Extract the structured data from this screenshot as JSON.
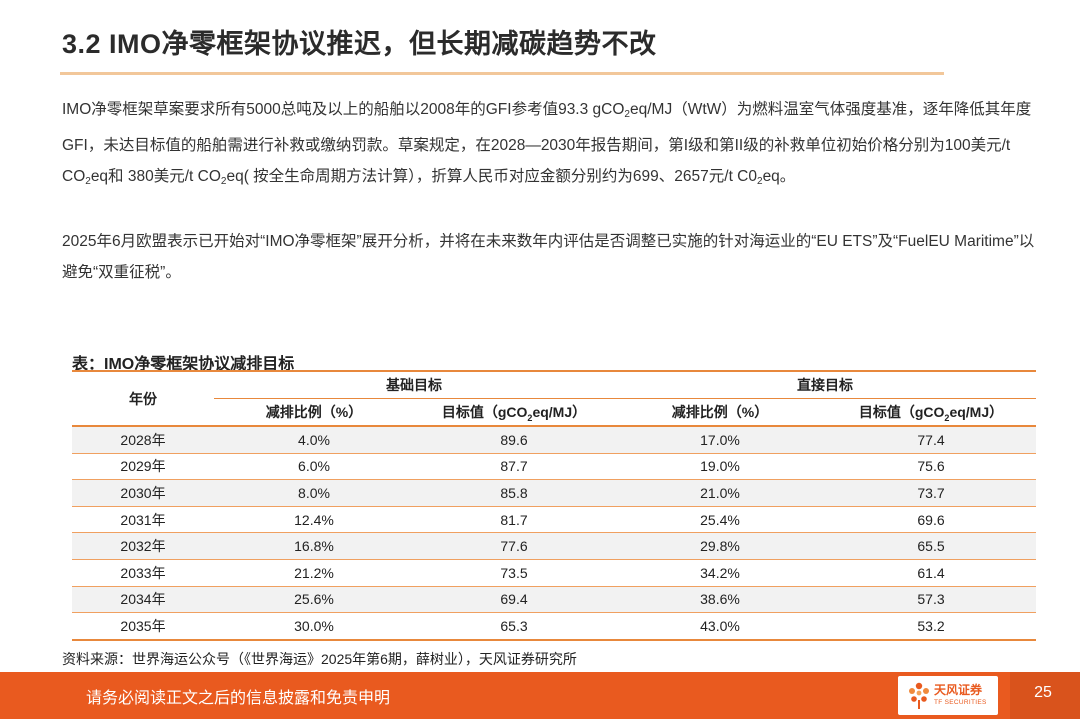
{
  "title": "3.2 IMO净零框架协议推迟，但长期减碳趋势不改",
  "paragraph1": {
    "s1": "IMO净零框架草案要求所有5000总吨及以上的船舶以2008年的GFI参考值93.3  gCO",
    "sub1": "2",
    "s2": "eq/MJ（WtW）为燃料温室气体强度基准，逐年降低其年度GFI，未达目标值的船舶需进行补救或缴纳罚款。草案规定，在2028—2030年报告期间，第I级和第II级的补救单位初始价格分别为100美元/t CO",
    "sub2": "2",
    "s3": "eq和 380美元/t CO",
    "sub3": "2",
    "s4": "eq( 按全生命周期方法计算），折算人民币对应金额分别约为699、2657元/t C0",
    "sub4": "2",
    "s5": "eq。"
  },
  "paragraph2": "2025年6月欧盟表示已开始对“IMO净零框架”展开分析，并将在未来数年内评估是否调整已实施的针对海运业的“EU ETS”及“FuelEU Maritime”以避免“双重征税”。",
  "table": {
    "caption": "表：IMO净零框架协议减排目标",
    "year_header": "年份",
    "group1": "基础目标",
    "group2": "直接目标",
    "col_reduction": "减排比例（%）",
    "col_target_prefix": "目标值（gCO",
    "col_target_sub": "2",
    "col_target_suffix": "eq/MJ）",
    "rows": [
      {
        "year": "2028年",
        "base_pct": "4.0%",
        "base_val": "89.6",
        "direct_pct": "17.0%",
        "direct_val": "77.4"
      },
      {
        "year": "2029年",
        "base_pct": "6.0%",
        "base_val": "87.7",
        "direct_pct": "19.0%",
        "direct_val": "75.6"
      },
      {
        "year": "2030年",
        "base_pct": "8.0%",
        "base_val": "85.8",
        "direct_pct": "21.0%",
        "direct_val": "73.7"
      },
      {
        "year": "2031年",
        "base_pct": "12.4%",
        "base_val": "81.7",
        "direct_pct": "25.4%",
        "direct_val": "69.6"
      },
      {
        "year": "2032年",
        "base_pct": "16.8%",
        "base_val": "77.6",
        "direct_pct": "29.8%",
        "direct_val": "65.5"
      },
      {
        "year": "2033年",
        "base_pct": "21.2%",
        "base_val": "73.5",
        "direct_pct": "34.2%",
        "direct_val": "61.4"
      },
      {
        "year": "2034年",
        "base_pct": "25.6%",
        "base_val": "69.4",
        "direct_pct": "38.6%",
        "direct_val": "57.3"
      },
      {
        "year": "2035年",
        "base_pct": "30.0%",
        "base_val": "65.3",
        "direct_pct": "43.0%",
        "direct_val": "53.2"
      }
    ]
  },
  "source": "资料来源：世界海运公众号（《世界海运》2025年第6期，薛树业），天风证券研究所",
  "footer": {
    "disclaimer": "请务必阅读正文之后的信息披露和免责申明",
    "logo_name": "天风证券",
    "logo_sub": "TF SECURITIES",
    "page_number": "25"
  },
  "colors": {
    "accent": "#e95a1f",
    "table_rule": "#e8883c",
    "title_rule": "#f2c79a",
    "stripe": "#f2f2f2"
  }
}
